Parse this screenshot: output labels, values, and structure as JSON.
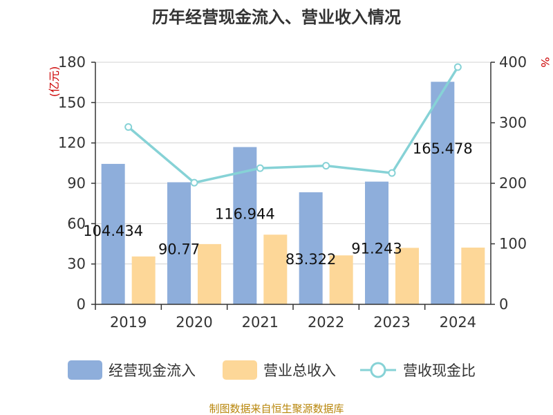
{
  "chart_data": {
    "type": "bar",
    "title": "历年经营现金流入、营业收入情况",
    "categories": [
      "2019",
      "2020",
      "2021",
      "2022",
      "2023",
      "2024"
    ],
    "y_left": {
      "unit": "(亿元)",
      "ylim": [
        0,
        180
      ],
      "ticks": [
        "0",
        "30",
        "60",
        "90",
        "120",
        "150",
        "180"
      ]
    },
    "y_right": {
      "unit": "%",
      "ylim": [
        0,
        400
      ],
      "ticks": [
        "0",
        "100",
        "200",
        "300",
        "400"
      ]
    },
    "series": [
      {
        "name": "经营现金流入",
        "type": "bar",
        "axis": "left",
        "color": "#8eaedb",
        "values": [
          104.434,
          90.77,
          116.944,
          83.322,
          91.243,
          165.478
        ],
        "labels": [
          "104.434",
          "90.77",
          "116.944",
          "83.322",
          "91.243",
          "165.478"
        ]
      },
      {
        "name": "营业总收入",
        "type": "bar",
        "axis": "left",
        "color": "#fdd798",
        "values": [
          35.6,
          44.8,
          51.8,
          36.4,
          42.0,
          42.2
        ]
      },
      {
        "name": "营收现金比",
        "type": "line",
        "axis": "right",
        "color": "#86d2d6",
        "values": [
          293,
          201,
          225,
          229,
          217,
          392
        ]
      }
    ],
    "grid": true,
    "legend_position": "bottom"
  },
  "source_note": "制图数据来自恒生聚源数据库"
}
